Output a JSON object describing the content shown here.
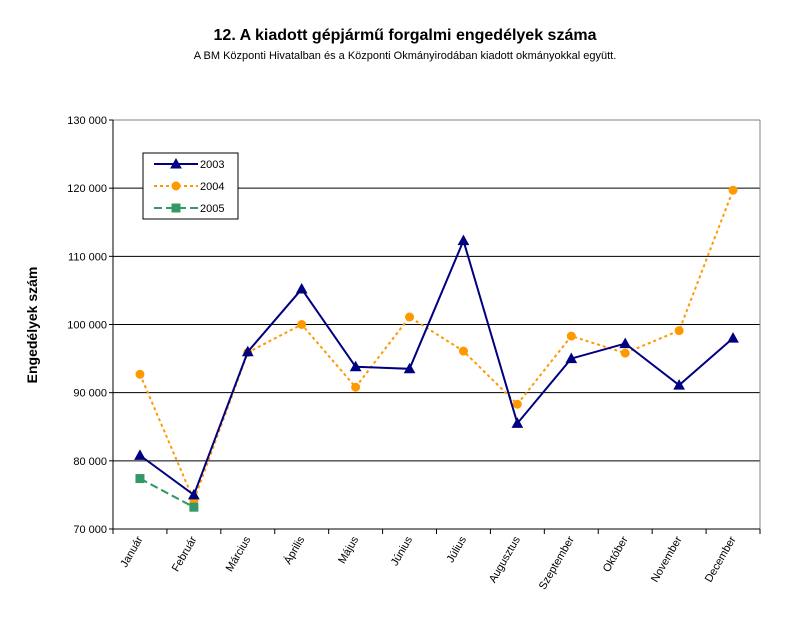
{
  "chart_data": {
    "type": "line",
    "title": "12. A  kiadott gépjármű forgalmi engedélyek száma",
    "subtitle": "A BM Központi Hivatalban és a Központi Okmányirodában kiadott okmányokkal együtt.",
    "ylabel": "Engedélyek szám",
    "xlabel": "",
    "ylim": [
      70000,
      130000
    ],
    "yticks": [
      70000,
      80000,
      90000,
      100000,
      110000,
      120000,
      130000
    ],
    "ytick_labels": [
      "70 000",
      "80 000",
      "90 000",
      "100 000",
      "110 000",
      "120 000",
      "130 000"
    ],
    "categories": [
      "Január",
      "Február",
      "Március",
      "Április",
      "Május",
      "Június",
      "Július",
      "Augusztus",
      "Szeptember",
      "Október",
      "November",
      "December"
    ],
    "grid": true,
    "legend_position": "top-left",
    "series": [
      {
        "name": "2003",
        "color": "#000080",
        "marker": "triangle",
        "dash": "solid",
        "values": [
          80800,
          75000,
          96000,
          105200,
          93800,
          93500,
          112300,
          85500,
          95000,
          97200,
          91100,
          98000
        ]
      },
      {
        "name": "2004",
        "color": "#FF9900",
        "marker": "circle",
        "dash": "dotted",
        "values": [
          92700,
          74200,
          95900,
          100000,
          90800,
          101100,
          96100,
          88300,
          98300,
          95800,
          99100,
          119700
        ]
      },
      {
        "name": "2005",
        "color": "#339966",
        "marker": "square",
        "dash": "dashed",
        "values": [
          77400,
          73200,
          null,
          null,
          null,
          null,
          null,
          null,
          null,
          null,
          null,
          null
        ]
      }
    ]
  }
}
